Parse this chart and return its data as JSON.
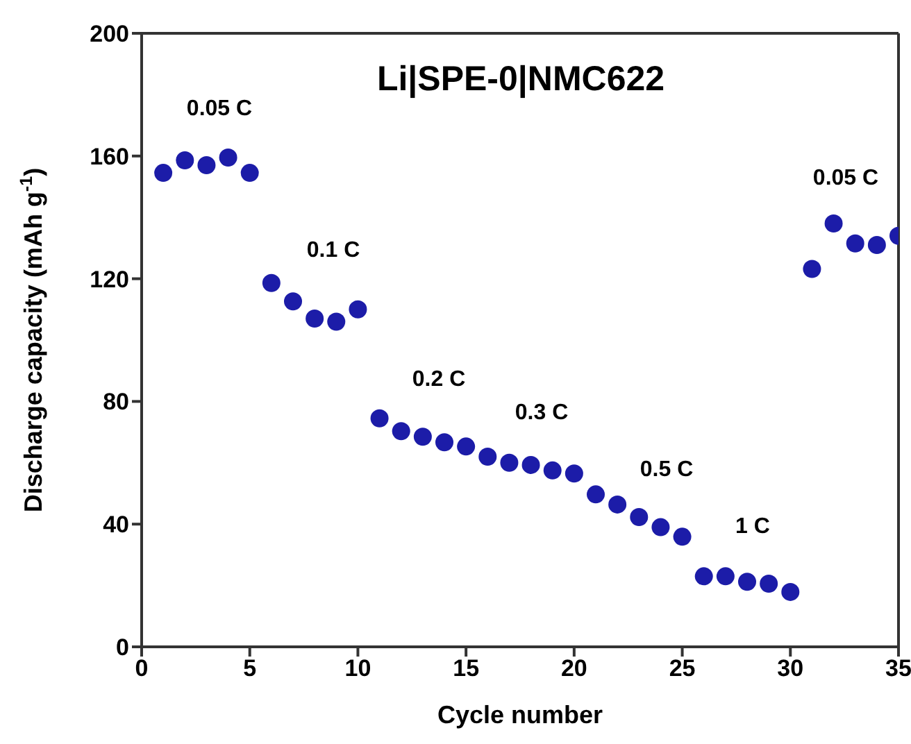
{
  "chart_data": {
    "type": "scatter",
    "title": "Li|SPE-0|NMC622",
    "xlabel": "Cycle number",
    "ylabel": "Discharge capacity (mAh g$^{-1}$)",
    "x": [
      1,
      2,
      3,
      4,
      5,
      6,
      7,
      8,
      9,
      10,
      11,
      12,
      13,
      14,
      15,
      16,
      17,
      18,
      19,
      20,
      21,
      22,
      23,
      24,
      25,
      26,
      27,
      28,
      29,
      30,
      31,
      32,
      33,
      34,
      35
    ],
    "series": [
      {
        "color": "#1c1ca8",
        "values": [
          154.5,
          158.6,
          157,
          159.5,
          154.5,
          118.6,
          112.6,
          107,
          106,
          110,
          74.5,
          70.3,
          68.5,
          66.7,
          65.3,
          62,
          60,
          59.3,
          57.5,
          56.5,
          49.7,
          46.4,
          42.3,
          39,
          35.9,
          23,
          23,
          21.2,
          20.6,
          17.9,
          123.2,
          138,
          131.5,
          131,
          134
        ]
      }
    ],
    "xlim": [
      0,
      35
    ],
    "xticks": [
      0,
      5,
      10,
      15,
      20,
      25,
      30,
      35
    ],
    "ylim": [
      0,
      200
    ],
    "yticks": [
      0,
      40,
      80,
      120,
      160,
      200
    ],
    "marker": "circle",
    "legend": false,
    "annotations": [
      "0.05 C",
      "0.1 C",
      "0.2 C",
      "0.3 C",
      "0.5 C",
      "1 C",
      "0.05 C"
    ]
  }
}
